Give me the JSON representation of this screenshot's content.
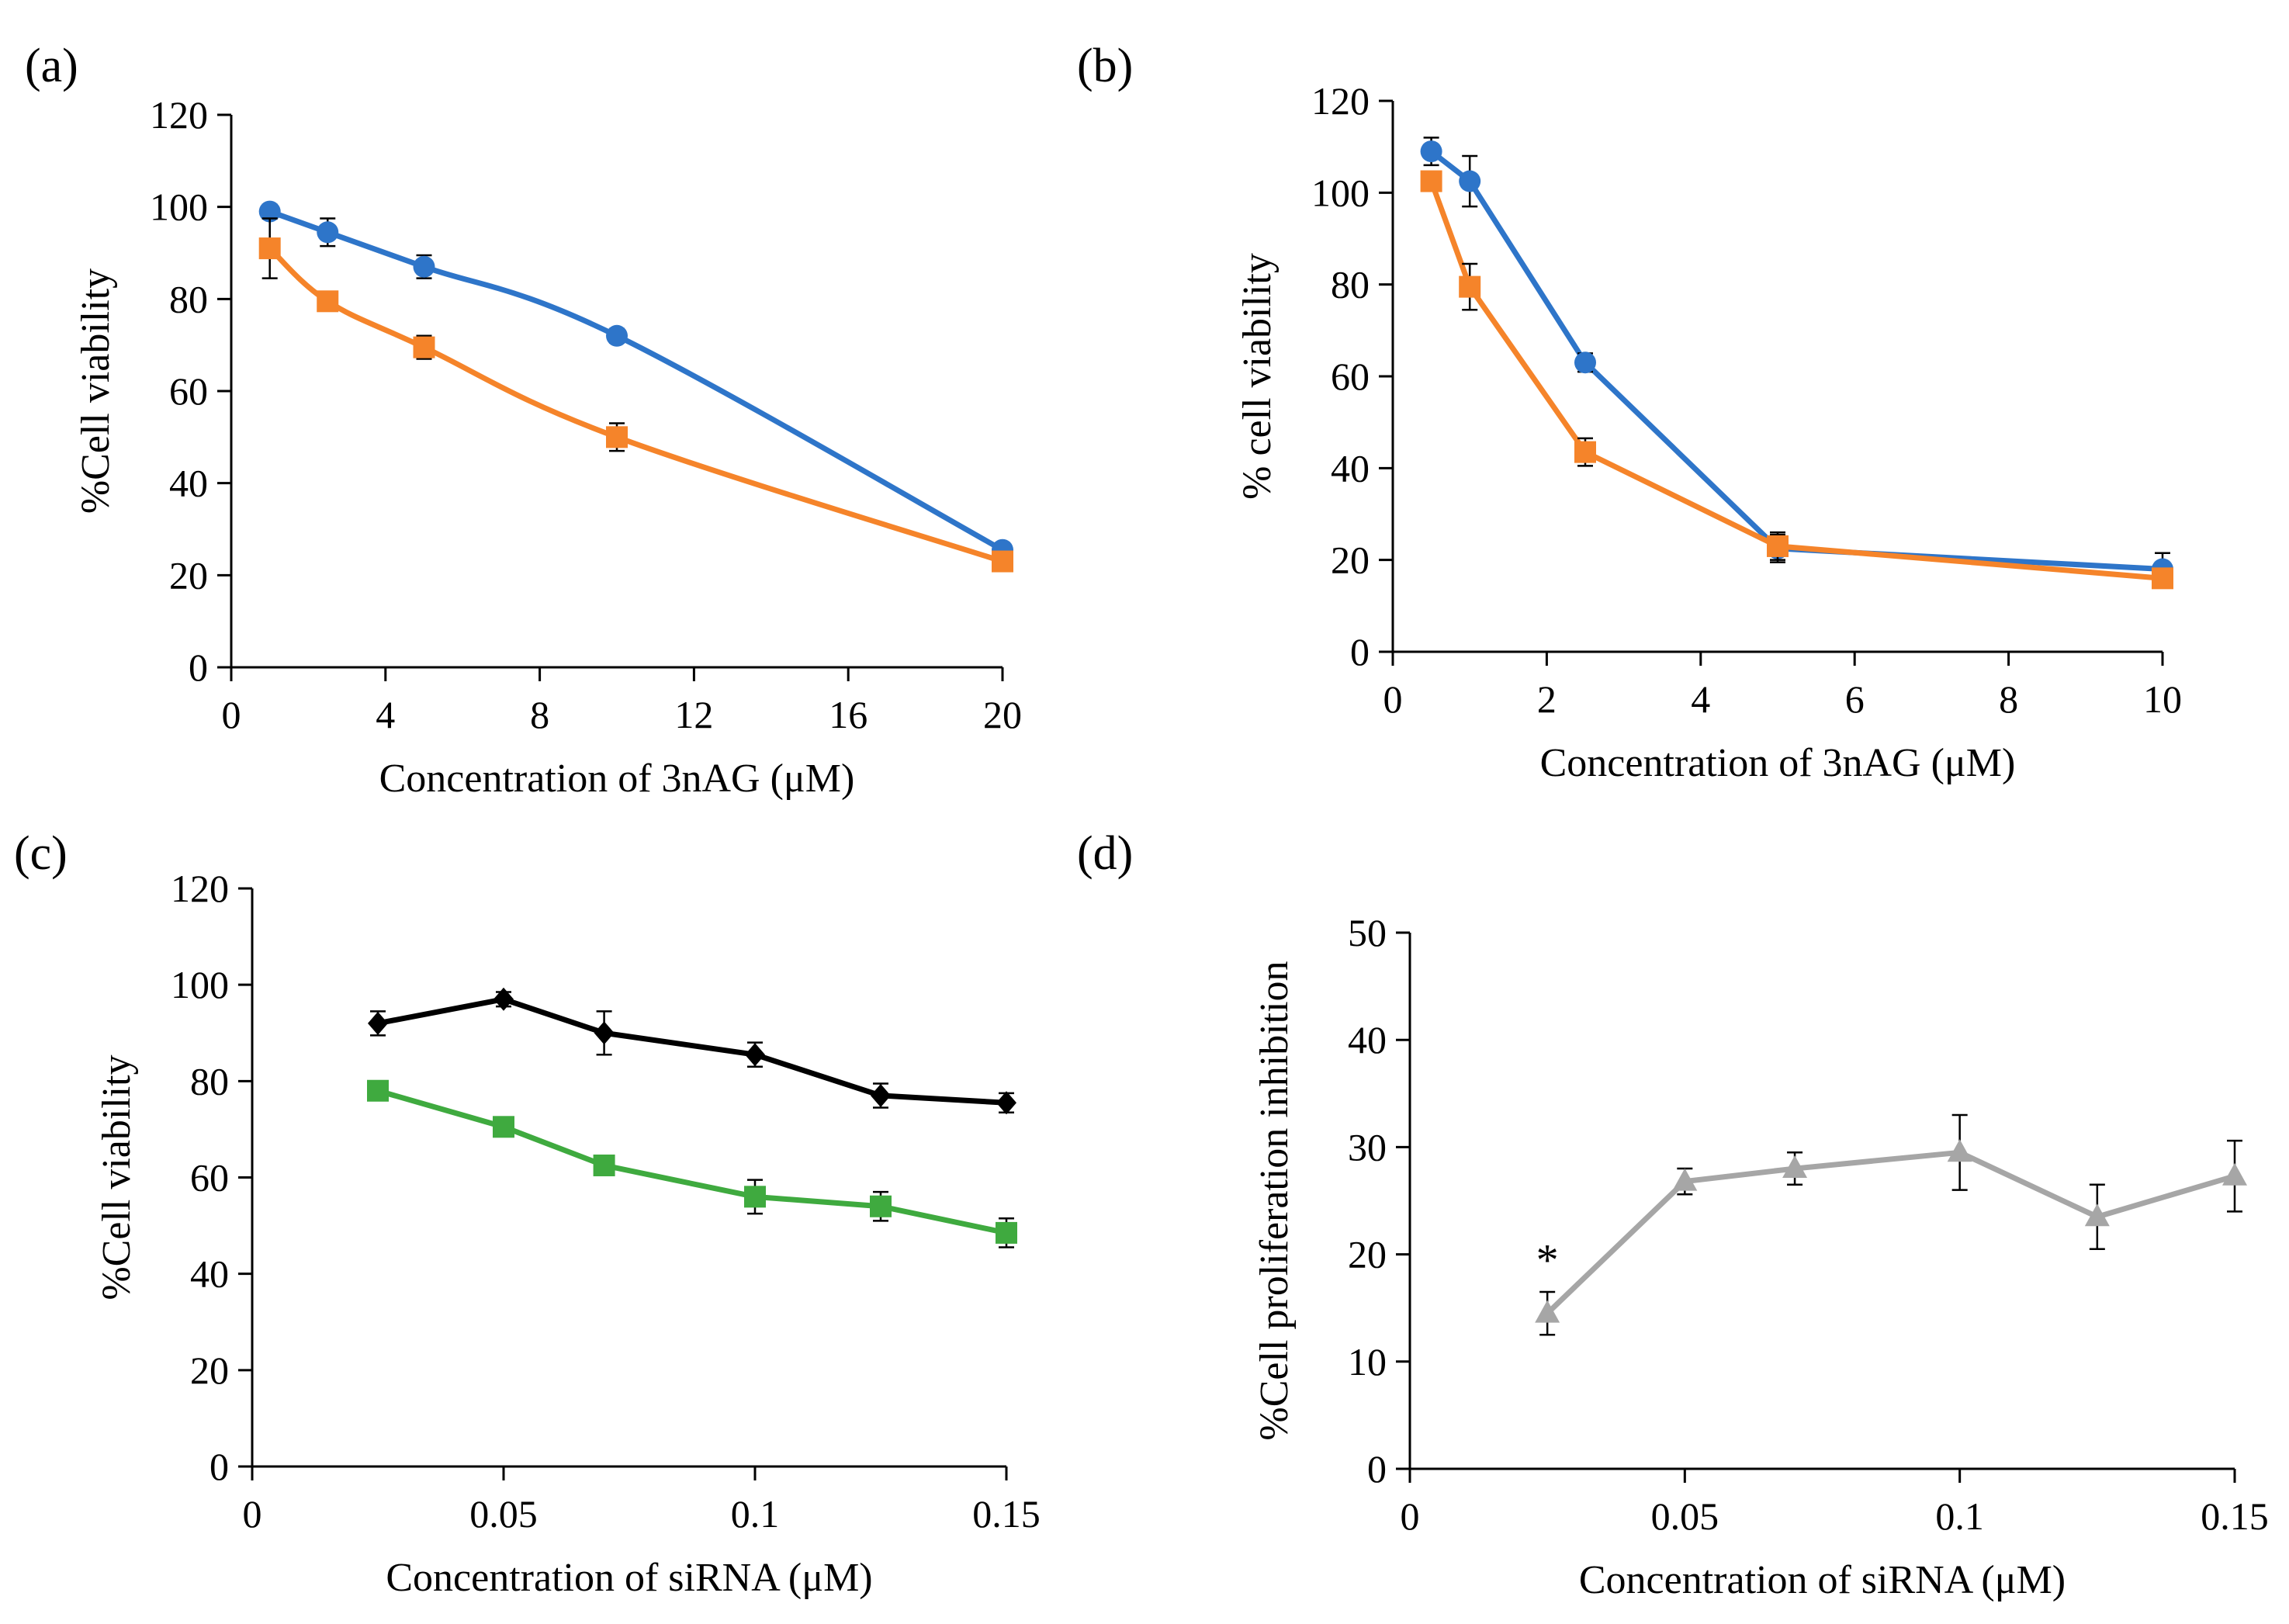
{
  "panels": {
    "a": {
      "label": "(a)",
      "xlabel": "Concentration of 3nAG (μM)",
      "ylabel": "%Cell viability"
    },
    "b": {
      "label": "(b)",
      "xlabel": "Concentration of 3nAG (μM)",
      "ylabel": "% cell viability"
    },
    "c": {
      "label": "(c)",
      "xlabel": "Concentration of siRNA (μM)",
      "ylabel": "%Cell viability"
    },
    "d": {
      "label": "(d)",
      "xlabel": "Concentration of siRNA (μM)",
      "ylabel": "%Cell proliferation  inhibition"
    }
  },
  "chart_data": [
    {
      "id": "a",
      "type": "line",
      "title": "",
      "xlabel": "Concentration of 3nAG (μM)",
      "ylabel": "%Cell viability",
      "xlim": [
        0,
        20
      ],
      "ylim": [
        0,
        120
      ],
      "xticks": [
        0,
        4,
        8,
        12,
        16,
        20
      ],
      "xtick_labels": [
        "0",
        "4",
        "8",
        "12",
        "16",
        "20"
      ],
      "yticks": [
        0,
        20,
        40,
        60,
        80,
        100,
        120
      ],
      "ytick_labels": [
        "0",
        "20",
        "40",
        "60",
        "80",
        "100",
        "120"
      ],
      "smooth": true,
      "series": [
        {
          "name": "blue-circle",
          "color": "#2e75c9",
          "marker": "circle",
          "x": [
            1,
            2.5,
            5,
            10,
            20
          ],
          "values": [
            99,
            94.5,
            87,
            72,
            25.5
          ],
          "err": [
            1.5,
            3,
            2.5,
            1.5,
            1.5
          ]
        },
        {
          "name": "orange-square",
          "color": "#f5842a",
          "marker": "square",
          "x": [
            1,
            2.5,
            5,
            10,
            20
          ],
          "values": [
            91,
            79.5,
            69.5,
            50,
            23
          ],
          "err": [
            6.5,
            1.5,
            2.5,
            3,
            1.5
          ]
        }
      ]
    },
    {
      "id": "b",
      "type": "line",
      "title": "",
      "xlabel": "Concentration of 3nAG (μM)",
      "ylabel": "% cell viability",
      "xlim": [
        0,
        10
      ],
      "ylim": [
        0,
        120
      ],
      "xticks": [
        0,
        2,
        4,
        6,
        8,
        10
      ],
      "xtick_labels": [
        "0",
        "2",
        "4",
        "6",
        "8",
        "10"
      ],
      "yticks": [
        0,
        20,
        40,
        60,
        80,
        100,
        120
      ],
      "ytick_labels": [
        "0",
        "20",
        "40",
        "60",
        "80",
        "100",
        "120"
      ],
      "smooth": false,
      "series": [
        {
          "name": "blue-circle",
          "color": "#2e75c9",
          "marker": "circle",
          "x": [
            0.5,
            1,
            2.5,
            5,
            10
          ],
          "values": [
            109,
            102.5,
            63,
            22.5,
            18
          ],
          "err": [
            3,
            5.5,
            2,
            3,
            3.5
          ]
        },
        {
          "name": "orange-square",
          "color": "#f5842a",
          "marker": "square",
          "x": [
            0.5,
            1,
            2.5,
            5,
            10
          ],
          "values": [
            102.5,
            79.5,
            43.5,
            23,
            16
          ],
          "err": [
            1.5,
            5,
            3,
            3,
            1.5
          ]
        }
      ]
    },
    {
      "id": "c",
      "type": "line",
      "title": "",
      "xlabel": "Concentration of siRNA (μM)",
      "ylabel": "%Cell viability",
      "xlim": [
        0,
        0.15
      ],
      "ylim": [
        0,
        120
      ],
      "xticks": [
        0,
        0.05,
        0.1,
        0.15
      ],
      "xtick_labels": [
        "0",
        "0.05",
        "0.1",
        "0.15"
      ],
      "yticks": [
        0,
        20,
        40,
        60,
        80,
        100,
        120
      ],
      "ytick_labels": [
        "0",
        "20",
        "40",
        "60",
        "80",
        "100",
        "120"
      ],
      "smooth": false,
      "series": [
        {
          "name": "black-diamond",
          "color": "#000000",
          "marker": "diamond",
          "x": [
            0.025,
            0.05,
            0.07,
            0.1,
            0.125,
            0.15
          ],
          "values": [
            92,
            97,
            90,
            85.5,
            77,
            75.5
          ],
          "err": [
            2.5,
            1.5,
            4.5,
            2.5,
            2.5,
            2
          ]
        },
        {
          "name": "green-square",
          "color": "#3faa3f",
          "marker": "square",
          "x": [
            0.025,
            0.05,
            0.07,
            0.1,
            0.125,
            0.15
          ],
          "values": [
            78,
            70.5,
            62.5,
            56,
            54,
            48.5
          ],
          "err": [
            1,
            1,
            1,
            3.5,
            3,
            3
          ]
        }
      ]
    },
    {
      "id": "d",
      "type": "line",
      "title": "",
      "xlabel": "Concentration of siRNA (μM)",
      "ylabel": "%Cell proliferation  inhibition",
      "xlim": [
        0,
        0.15
      ],
      "ylim": [
        0,
        50
      ],
      "xticks": [
        0,
        0.05,
        0.1,
        0.15
      ],
      "xtick_labels": [
        "0",
        "0.05",
        "0.1",
        "0.15"
      ],
      "yticks": [
        0,
        10,
        20,
        30,
        40,
        50
      ],
      "ytick_labels": [
        "0",
        "10",
        "20",
        "30",
        "40",
        "50"
      ],
      "smooth": false,
      "annotations": [
        {
          "text": "*",
          "x": 0.025,
          "y": 19.5
        }
      ],
      "series": [
        {
          "name": "gray-triangle",
          "color": "#a6a6a6",
          "marker": "triangle",
          "x": [
            0.025,
            0.05,
            0.07,
            0.1,
            0.125,
            0.15
          ],
          "values": [
            14.5,
            26.8,
            28,
            29.5,
            23.5,
            27.3
          ],
          "err": [
            2,
            1.2,
            1.5,
            3.5,
            3,
            3.3
          ]
        }
      ]
    }
  ]
}
